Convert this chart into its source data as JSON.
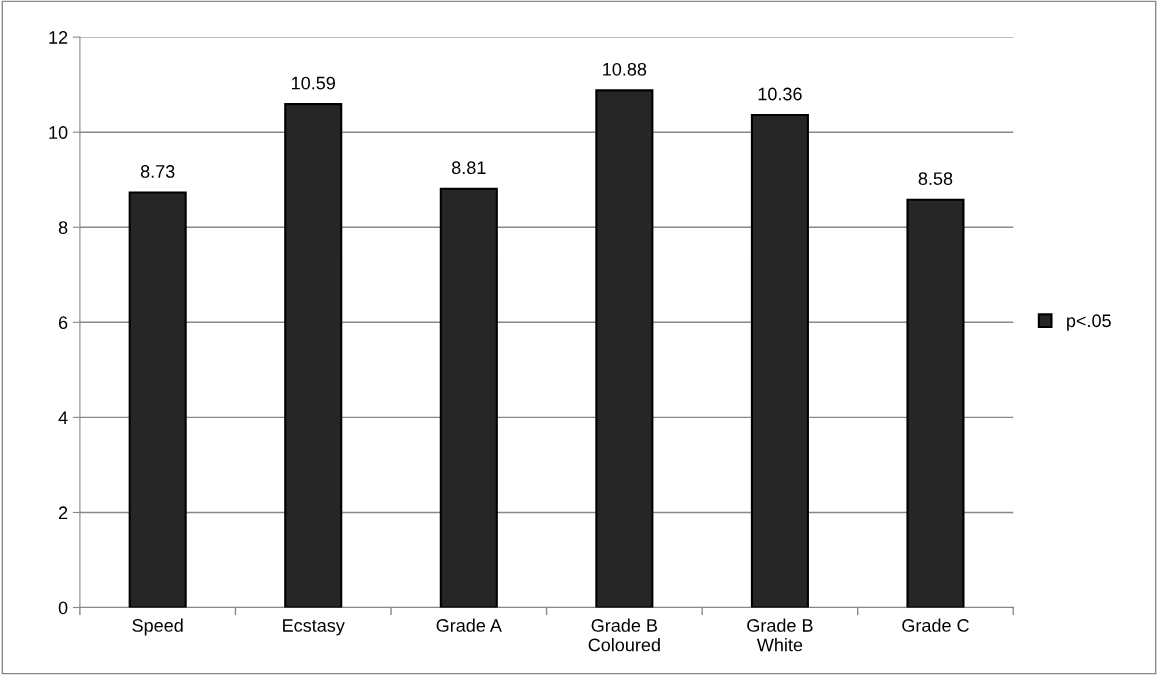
{
  "chart_data": {
    "type": "bar",
    "categories": [
      "Speed",
      "Ecstasy",
      "Grade A",
      "Grade B\nColoured",
      "Grade B\nWhite",
      "Grade C"
    ],
    "series": [
      {
        "name": "p<.05",
        "color": "#262626",
        "values": [
          8.73,
          10.59,
          8.81,
          10.88,
          10.36,
          8.58
        ]
      }
    ],
    "ylim": [
      0,
      12
    ],
    "yticks": [
      0,
      2,
      4,
      6,
      8,
      10,
      12
    ],
    "grid": "y",
    "legend": "right",
    "data_labels": true
  }
}
